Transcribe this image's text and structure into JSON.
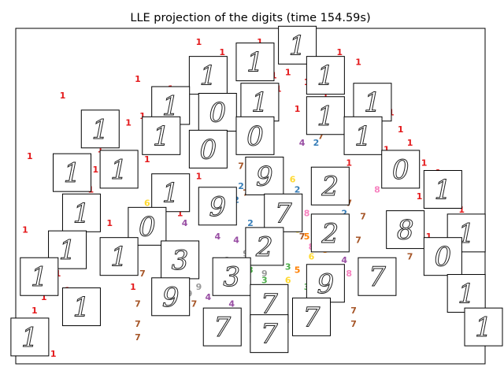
{
  "chart_data": {
    "type": "scatter",
    "title": "LLE projection of the digits (time 154.59s)",
    "xlabel": "",
    "ylabel": "",
    "xlim": [
      0,
      1
    ],
    "ylim": [
      0,
      1
    ],
    "axis_ticks": false,
    "grid": false,
    "legend": "none",
    "digit_colors": {
      "0": "#e41a1c",
      "1": "#e41a1c",
      "2": "#377eb8",
      "3": "#4daf4a",
      "4": "#984ea3",
      "5": "#ff7f00",
      "6": "#ffd92f",
      "7": "#a65628",
      "8": "#f781bf",
      "9": "#999999"
    },
    "points": [
      {
        "x": 0.52,
        "y": 0.96,
        "label": "1"
      },
      {
        "x": 0.39,
        "y": 0.96,
        "label": "1"
      },
      {
        "x": 0.44,
        "y": 0.93,
        "label": "1"
      },
      {
        "x": 0.62,
        "y": 0.95,
        "label": "1"
      },
      {
        "x": 0.69,
        "y": 0.93,
        "label": "1"
      },
      {
        "x": 0.58,
        "y": 0.87,
        "label": "1"
      },
      {
        "x": 0.62,
        "y": 0.84,
        "label": "1"
      },
      {
        "x": 0.55,
        "y": 0.86,
        "label": "1"
      },
      {
        "x": 0.5,
        "y": 0.9,
        "label": "1"
      },
      {
        "x": 0.33,
        "y": 0.82,
        "label": "1"
      },
      {
        "x": 0.31,
        "y": 0.8,
        "label": "1"
      },
      {
        "x": 0.27,
        "y": 0.74,
        "label": "1"
      },
      {
        "x": 0.24,
        "y": 0.72,
        "label": "1"
      },
      {
        "x": 0.21,
        "y": 0.69,
        "label": "1"
      },
      {
        "x": 0.18,
        "y": 0.64,
        "label": "1"
      },
      {
        "x": 0.17,
        "y": 0.58,
        "label": "1"
      },
      {
        "x": 0.16,
        "y": 0.52,
        "label": "1"
      },
      {
        "x": 0.15,
        "y": 0.46,
        "label": "1"
      },
      {
        "x": 0.14,
        "y": 0.4,
        "label": "1"
      },
      {
        "x": 0.12,
        "y": 0.34,
        "label": "1"
      },
      {
        "x": 0.09,
        "y": 0.27,
        "label": "1"
      },
      {
        "x": 0.06,
        "y": 0.2,
        "label": "1"
      },
      {
        "x": 0.04,
        "y": 0.16,
        "label": "1"
      },
      {
        "x": 0.06,
        "y": 0.09,
        "label": "1"
      },
      {
        "x": 0.11,
        "y": 0.22,
        "label": "1"
      },
      {
        "x": 0.13,
        "y": 0.31,
        "label": "1"
      },
      {
        "x": 0.2,
        "y": 0.42,
        "label": "1"
      },
      {
        "x": 0.23,
        "y": 0.55,
        "label": "1"
      },
      {
        "x": 0.28,
        "y": 0.61,
        "label": "1"
      },
      {
        "x": 0.3,
        "y": 0.68,
        "label": "1"
      },
      {
        "x": 0.26,
        "y": 0.85,
        "label": "1"
      },
      {
        "x": 0.36,
        "y": 0.81,
        "label": "1"
      },
      {
        "x": 0.42,
        "y": 0.78,
        "label": "1"
      },
      {
        "x": 0.56,
        "y": 0.82,
        "label": "1"
      },
      {
        "x": 0.6,
        "y": 0.76,
        "label": "1"
      },
      {
        "x": 0.66,
        "y": 0.8,
        "label": "1"
      },
      {
        "x": 0.73,
        "y": 0.9,
        "label": "1"
      },
      {
        "x": 0.77,
        "y": 0.82,
        "label": "1"
      },
      {
        "x": 0.8,
        "y": 0.75,
        "label": "1"
      },
      {
        "x": 0.82,
        "y": 0.7,
        "label": "1"
      },
      {
        "x": 0.84,
        "y": 0.66,
        "label": "1"
      },
      {
        "x": 0.87,
        "y": 0.6,
        "label": "1"
      },
      {
        "x": 0.9,
        "y": 0.57,
        "label": "1"
      },
      {
        "x": 0.93,
        "y": 0.55,
        "label": "1"
      },
      {
        "x": 0.95,
        "y": 0.46,
        "label": "1"
      },
      {
        "x": 0.98,
        "y": 0.42,
        "label": "1"
      },
      {
        "x": 0.97,
        "y": 0.36,
        "label": "1"
      },
      {
        "x": 0.92,
        "y": 0.33,
        "label": "1"
      },
      {
        "x": 0.88,
        "y": 0.38,
        "label": "1"
      },
      {
        "x": 0.86,
        "y": 0.5,
        "label": "1"
      },
      {
        "x": 0.79,
        "y": 0.64,
        "label": "1"
      },
      {
        "x": 0.75,
        "y": 0.72,
        "label": "1"
      },
      {
        "x": 0.71,
        "y": 0.6,
        "label": "1"
      },
      {
        "x": 0.64,
        "y": 0.7,
        "label": "1"
      },
      {
        "x": 0.52,
        "y": 0.74,
        "label": "1"
      },
      {
        "x": 0.39,
        "y": 0.56,
        "label": "1"
      },
      {
        "x": 0.35,
        "y": 0.45,
        "label": "1"
      },
      {
        "x": 0.25,
        "y": 0.23,
        "label": "1"
      },
      {
        "x": 0.08,
        "y": 0.03,
        "label": "1"
      },
      {
        "x": 0.03,
        "y": 0.62,
        "label": "1"
      },
      {
        "x": 0.02,
        "y": 0.4,
        "label": "1"
      },
      {
        "x": 0.1,
        "y": 0.8,
        "label": "1"
      },
      {
        "x": 0.6,
        "y": 0.52,
        "label": "2"
      },
      {
        "x": 0.65,
        "y": 0.49,
        "label": "2"
      },
      {
        "x": 0.54,
        "y": 0.44,
        "label": "2"
      },
      {
        "x": 0.47,
        "y": 0.49,
        "label": "2"
      },
      {
        "x": 0.7,
        "y": 0.45,
        "label": "2"
      },
      {
        "x": 0.64,
        "y": 0.66,
        "label": "2"
      },
      {
        "x": 0.48,
        "y": 0.53,
        "label": "2"
      },
      {
        "x": 0.5,
        "y": 0.42,
        "label": "2"
      },
      {
        "x": 0.56,
        "y": 0.33,
        "label": "3"
      },
      {
        "x": 0.58,
        "y": 0.29,
        "label": "3"
      },
      {
        "x": 0.5,
        "y": 0.28,
        "label": "3"
      },
      {
        "x": 0.53,
        "y": 0.25,
        "label": "3"
      },
      {
        "x": 0.62,
        "y": 0.23,
        "label": "3"
      },
      {
        "x": 0.47,
        "y": 0.22,
        "label": "3"
      },
      {
        "x": 0.43,
        "y": 0.38,
        "label": "4"
      },
      {
        "x": 0.47,
        "y": 0.37,
        "label": "4"
      },
      {
        "x": 0.37,
        "y": 0.27,
        "label": "4"
      },
      {
        "x": 0.41,
        "y": 0.2,
        "label": "4"
      },
      {
        "x": 0.7,
        "y": 0.31,
        "label": "4"
      },
      {
        "x": 0.61,
        "y": 0.66,
        "label": "4"
      },
      {
        "x": 0.36,
        "y": 0.42,
        "label": "4"
      },
      {
        "x": 0.46,
        "y": 0.18,
        "label": "4"
      },
      {
        "x": 0.62,
        "y": 0.38,
        "label": "5"
      },
      {
        "x": 0.55,
        "y": 0.36,
        "label": "5"
      },
      {
        "x": 0.6,
        "y": 0.28,
        "label": "5"
      },
      {
        "x": 0.57,
        "y": 0.48,
        "label": "5"
      },
      {
        "x": 0.66,
        "y": 0.34,
        "label": "5"
      },
      {
        "x": 0.52,
        "y": 0.31,
        "label": "5"
      },
      {
        "x": 0.59,
        "y": 0.55,
        "label": "6"
      },
      {
        "x": 0.63,
        "y": 0.32,
        "label": "6"
      },
      {
        "x": 0.6,
        "y": 0.4,
        "label": "6"
      },
      {
        "x": 0.66,
        "y": 0.42,
        "label": "6"
      },
      {
        "x": 0.58,
        "y": 0.25,
        "label": "6"
      },
      {
        "x": 0.28,
        "y": 0.48,
        "label": "6"
      },
      {
        "x": 0.48,
        "y": 0.59,
        "label": "7"
      },
      {
        "x": 0.55,
        "y": 0.55,
        "label": "7"
      },
      {
        "x": 0.71,
        "y": 0.48,
        "label": "7"
      },
      {
        "x": 0.73,
        "y": 0.37,
        "label": "7"
      },
      {
        "x": 0.84,
        "y": 0.32,
        "label": "7"
      },
      {
        "x": 0.38,
        "y": 0.18,
        "label": "7"
      },
      {
        "x": 0.26,
        "y": 0.18,
        "label": "7"
      },
      {
        "x": 0.72,
        "y": 0.16,
        "label": "7"
      },
      {
        "x": 0.69,
        "y": 0.22,
        "label": "7"
      },
      {
        "x": 0.7,
        "y": 0.56,
        "label": "7"
      },
      {
        "x": 0.74,
        "y": 0.44,
        "label": "7"
      },
      {
        "x": 0.26,
        "y": 0.38,
        "label": "7"
      },
      {
        "x": 0.48,
        "y": 0.23,
        "label": "7"
      },
      {
        "x": 0.27,
        "y": 0.27,
        "label": "7"
      },
      {
        "x": 0.65,
        "y": 0.68,
        "label": "7"
      },
      {
        "x": 0.72,
        "y": 0.12,
        "label": "7"
      },
      {
        "x": 0.26,
        "y": 0.12,
        "label": "7"
      },
      {
        "x": 0.49,
        "y": 0.51,
        "label": "7"
      },
      {
        "x": 0.31,
        "y": 0.41,
        "label": "7"
      },
      {
        "x": 0.26,
        "y": 0.08,
        "label": "7"
      },
      {
        "x": 0.61,
        "y": 0.38,
        "label": "7"
      },
      {
        "x": 0.58,
        "y": 0.43,
        "label": "8"
      },
      {
        "x": 0.62,
        "y": 0.45,
        "label": "8"
      },
      {
        "x": 0.67,
        "y": 0.39,
        "label": "8"
      },
      {
        "x": 0.77,
        "y": 0.52,
        "label": "8"
      },
      {
        "x": 0.71,
        "y": 0.27,
        "label": "8"
      },
      {
        "x": 0.63,
        "y": 0.35,
        "label": "8"
      },
      {
        "x": 0.45,
        "y": 0.31,
        "label": "9"
      },
      {
        "x": 0.49,
        "y": 0.33,
        "label": "9"
      },
      {
        "x": 0.53,
        "y": 0.27,
        "label": "9"
      },
      {
        "x": 0.43,
        "y": 0.25,
        "label": "9"
      },
      {
        "x": 0.39,
        "y": 0.23,
        "label": "9"
      },
      {
        "x": 0.37,
        "y": 0.21,
        "label": "9"
      },
      {
        "x": 0.47,
        "y": 0.15,
        "label": "9"
      },
      {
        "x": 0.44,
        "y": 0.27,
        "label": "9"
      }
    ],
    "thumbnails": [
      {
        "x": 0.6,
        "y": 0.95,
        "glyph": "1"
      },
      {
        "x": 0.51,
        "y": 0.9,
        "glyph": "1"
      },
      {
        "x": 0.66,
        "y": 0.86,
        "glyph": "1"
      },
      {
        "x": 0.41,
        "y": 0.86,
        "glyph": "1"
      },
      {
        "x": 0.52,
        "y": 0.78,
        "glyph": "1"
      },
      {
        "x": 0.43,
        "y": 0.75,
        "glyph": "0"
      },
      {
        "x": 0.33,
        "y": 0.77,
        "glyph": "1"
      },
      {
        "x": 0.76,
        "y": 0.78,
        "glyph": "1"
      },
      {
        "x": 0.66,
        "y": 0.74,
        "glyph": "1"
      },
      {
        "x": 0.18,
        "y": 0.7,
        "glyph": "1"
      },
      {
        "x": 0.31,
        "y": 0.68,
        "glyph": "1"
      },
      {
        "x": 0.51,
        "y": 0.68,
        "glyph": "0"
      },
      {
        "x": 0.41,
        "y": 0.64,
        "glyph": "0"
      },
      {
        "x": 0.74,
        "y": 0.68,
        "glyph": "1"
      },
      {
        "x": 0.22,
        "y": 0.58,
        "glyph": "1"
      },
      {
        "x": 0.12,
        "y": 0.57,
        "glyph": "1"
      },
      {
        "x": 0.82,
        "y": 0.58,
        "glyph": "0"
      },
      {
        "x": 0.53,
        "y": 0.56,
        "glyph": "9"
      },
      {
        "x": 0.67,
        "y": 0.53,
        "glyph": "2"
      },
      {
        "x": 0.91,
        "y": 0.52,
        "glyph": "1"
      },
      {
        "x": 0.33,
        "y": 0.51,
        "glyph": "1"
      },
      {
        "x": 0.14,
        "y": 0.45,
        "glyph": "1"
      },
      {
        "x": 0.43,
        "y": 0.47,
        "glyph": "9"
      },
      {
        "x": 0.57,
        "y": 0.45,
        "glyph": "7"
      },
      {
        "x": 0.28,
        "y": 0.41,
        "glyph": "0"
      },
      {
        "x": 0.67,
        "y": 0.39,
        "glyph": "2"
      },
      {
        "x": 0.83,
        "y": 0.4,
        "glyph": "8"
      },
      {
        "x": 0.96,
        "y": 0.39,
        "glyph": "1"
      },
      {
        "x": 0.11,
        "y": 0.34,
        "glyph": "1"
      },
      {
        "x": 0.22,
        "y": 0.32,
        "glyph": "1"
      },
      {
        "x": 0.53,
        "y": 0.35,
        "glyph": "2"
      },
      {
        "x": 0.35,
        "y": 0.31,
        "glyph": "3"
      },
      {
        "x": 0.91,
        "y": 0.32,
        "glyph": "0"
      },
      {
        "x": 0.05,
        "y": 0.26,
        "glyph": "1"
      },
      {
        "x": 0.46,
        "y": 0.26,
        "glyph": "3"
      },
      {
        "x": 0.66,
        "y": 0.24,
        "glyph": "9"
      },
      {
        "x": 0.77,
        "y": 0.26,
        "glyph": "7"
      },
      {
        "x": 0.14,
        "y": 0.17,
        "glyph": "1"
      },
      {
        "x": 0.33,
        "y": 0.2,
        "glyph": "9"
      },
      {
        "x": 0.54,
        "y": 0.18,
        "glyph": "7"
      },
      {
        "x": 0.96,
        "y": 0.21,
        "glyph": "1"
      },
      {
        "x": 0.63,
        "y": 0.14,
        "glyph": "7"
      },
      {
        "x": 0.44,
        "y": 0.11,
        "glyph": "7"
      },
      {
        "x": 0.54,
        "y": 0.09,
        "glyph": "7"
      },
      {
        "x": 0.03,
        "y": 0.08,
        "glyph": "1"
      },
      {
        "x": 1.0,
        "y": 0.11,
        "glyph": "1"
      }
    ]
  }
}
